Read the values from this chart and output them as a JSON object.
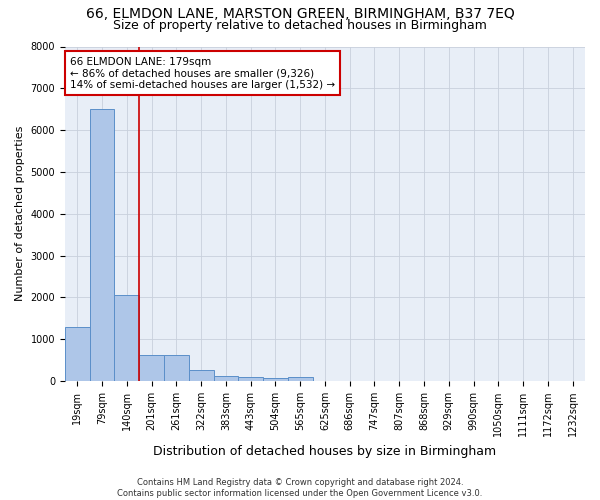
{
  "title": "66, ELMDON LANE, MARSTON GREEN, BIRMINGHAM, B37 7EQ",
  "subtitle": "Size of property relative to detached houses in Birmingham",
  "xlabel": "Distribution of detached houses by size in Birmingham",
  "ylabel": "Number of detached properties",
  "footer": "Contains HM Land Registry data © Crown copyright and database right 2024.\nContains public sector information licensed under the Open Government Licence v3.0.",
  "categories": [
    "19sqm",
    "79sqm",
    "140sqm",
    "201sqm",
    "261sqm",
    "322sqm",
    "383sqm",
    "443sqm",
    "504sqm",
    "565sqm",
    "625sqm",
    "686sqm",
    "747sqm",
    "807sqm",
    "868sqm",
    "929sqm",
    "990sqm",
    "1050sqm",
    "1111sqm",
    "1172sqm",
    "1232sqm"
  ],
  "values": [
    1280,
    6500,
    2050,
    620,
    620,
    250,
    130,
    90,
    60,
    90,
    0,
    0,
    0,
    0,
    0,
    0,
    0,
    0,
    0,
    0,
    0
  ],
  "bar_color": "#aec6e8",
  "bar_edge_color": "#5b8fc9",
  "property_line_x": 2.5,
  "property_line_color": "#cc0000",
  "annotation_line1": "66 ELMDON LANE: 179sqm",
  "annotation_line2": "← 86% of detached houses are smaller (9,326)",
  "annotation_line3": "14% of semi-detached houses are larger (1,532) →",
  "annotation_box_color": "#cc0000",
  "ylim": [
    0,
    8000
  ],
  "yticks": [
    0,
    1000,
    2000,
    3000,
    4000,
    5000,
    6000,
    7000,
    8000
  ],
  "grid_color": "#c8d0dc",
  "bg_color": "#e8eef7",
  "title_fontsize": 10,
  "subtitle_fontsize": 9,
  "xlabel_fontsize": 9,
  "ylabel_fontsize": 8,
  "tick_fontsize": 7,
  "footer_fontsize": 6,
  "annotation_fontsize": 7.5
}
